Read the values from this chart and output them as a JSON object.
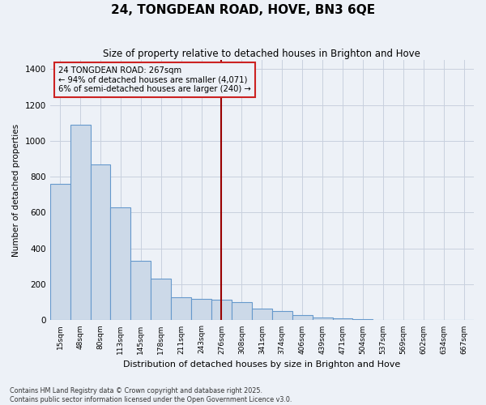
{
  "title": "24, TONGDEAN ROAD, HOVE, BN3 6QE",
  "subtitle": "Size of property relative to detached houses in Brighton and Hove",
  "xlabel": "Distribution of detached houses by size in Brighton and Hove",
  "ylabel": "Number of detached properties",
  "bar_color": "#ccd9e8",
  "bar_edge_color": "#6699cc",
  "background_color": "#edf1f7",
  "categories": [
    "15sqm",
    "48sqm",
    "80sqm",
    "113sqm",
    "145sqm",
    "178sqm",
    "211sqm",
    "243sqm",
    "276sqm",
    "308sqm",
    "341sqm",
    "374sqm",
    "406sqm",
    "439sqm",
    "471sqm",
    "504sqm",
    "537sqm",
    "569sqm",
    "602sqm",
    "634sqm",
    "667sqm"
  ],
  "values": [
    760,
    1090,
    870,
    630,
    330,
    230,
    130,
    120,
    115,
    100,
    65,
    50,
    30,
    15,
    10,
    5,
    3,
    3,
    3,
    3,
    3
  ],
  "ylim": [
    0,
    1450
  ],
  "yticks": [
    0,
    200,
    400,
    600,
    800,
    1000,
    1200,
    1400
  ],
  "property_label": "24 TONGDEAN ROAD: 267sqm",
  "pct_smaller": "94% of detached houses are smaller (4,071)",
  "pct_larger": "6% of semi-detached houses are larger (240)",
  "vline_bar_index": 8,
  "grid_color": "#c8d0de",
  "footer_line1": "Contains HM Land Registry data © Crown copyright and database right 2025.",
  "footer_line2": "Contains public sector information licensed under the Open Government Licence v3.0."
}
